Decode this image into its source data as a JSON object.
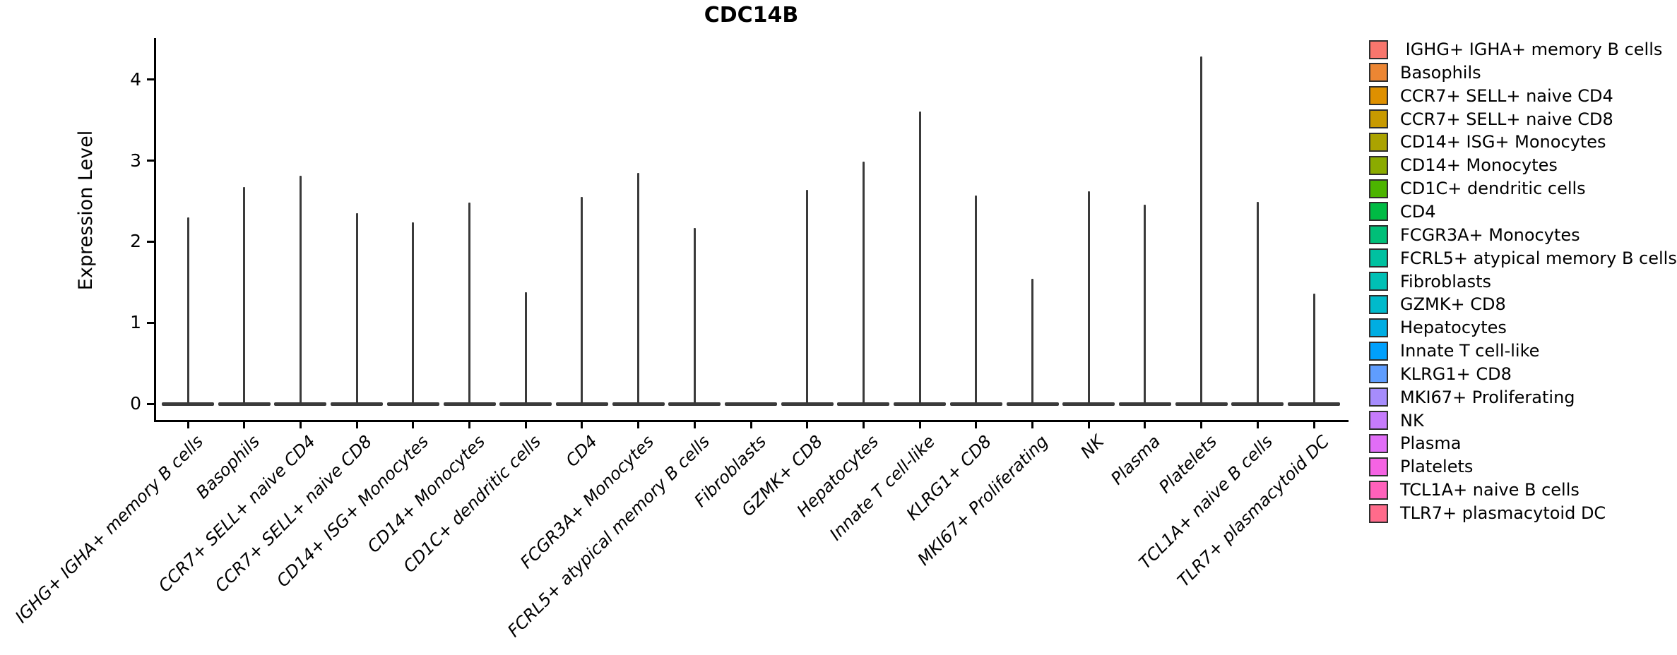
{
  "chart_data": {
    "type": "violin",
    "title": "CDC14B",
    "xlabel": "",
    "ylabel": "Expression Level",
    "y_ticks": [
      0,
      1,
      2,
      3,
      4
    ],
    "ylim": [
      -0.22,
      4.51
    ],
    "grid": false,
    "legend_position": "right",
    "violin_stroke_color": "#3a3a3a",
    "axis_color": "#000000",
    "categories": [
      {
        "label": "IGHG+ IGHA+ memory B cells",
        "legend_label": " IGHG+ IGHA+ memory B cells",
        "color": "#F8766D",
        "max_expression": 2.3
      },
      {
        "label": "Basophils",
        "legend_label": "Basophils",
        "color": "#EC8633",
        "max_expression": 2.67
      },
      {
        "label": "CCR7+ SELL+ naive CD4",
        "legend_label": "CCR7+ SELL+ naive CD4",
        "color": "#DE9000",
        "max_expression": 2.81
      },
      {
        "label": "CCR7+ SELL+ naive CD8",
        "legend_label": "CCR7+ SELL+ naive CD8",
        "color": "#C89A00",
        "max_expression": 2.35
      },
      {
        "label": "CD14+ ISG+ Monocytes",
        "legend_label": "CD14+ ISG+ Monocytes",
        "color": "#ABA300",
        "max_expression": 2.24
      },
      {
        "label": "CD14+ Monocytes",
        "legend_label": "CD14+ Monocytes",
        "color": "#8BAB00",
        "max_expression": 2.48
      },
      {
        "label": "CD1C+ dendritic cells",
        "legend_label": "CD1C+ dendritic cells",
        "color": "#4CB400",
        "max_expression": 1.38
      },
      {
        "label": "CD4",
        "legend_label": "CD4",
        "color": "#00BB44",
        "max_expression": 2.55
      },
      {
        "label": "FCGR3A+ Monocytes",
        "legend_label": "FCGR3A+ Monocytes",
        "color": "#00BF78",
        "max_expression": 2.85
      },
      {
        "label": "FCRL5+ atypical memory B cells",
        "legend_label": "FCRL5+ atypical memory B cells",
        "color": "#00C1A0",
        "max_expression": 2.17
      },
      {
        "label": "Fibroblasts",
        "legend_label": "Fibroblasts",
        "color": "#00C0B5",
        "max_expression": 0.0
      },
      {
        "label": "GZMK+ CD8",
        "legend_label": "GZMK+ CD8",
        "color": "#00BACB",
        "max_expression": 2.64
      },
      {
        "label": "Hepatocytes",
        "legend_label": "Hepatocytes",
        "color": "#00ADE2",
        "max_expression": 2.99
      },
      {
        "label": "Innate T cell-like",
        "legend_label": "Innate T cell-like",
        "color": "#00A0FC",
        "max_expression": 3.61
      },
      {
        "label": "KLRG1+ CD8",
        "legend_label": "KLRG1+ CD8",
        "color": "#5F9DFE",
        "max_expression": 2.57
      },
      {
        "label": "MKI67+ Proliferating",
        "legend_label": "MKI67+ Proliferating",
        "color": "#A68CFC",
        "max_expression": 1.54
      },
      {
        "label": "NK",
        "legend_label": "NK",
        "color": "#C67BFC",
        "max_expression": 2.62
      },
      {
        "label": "Plasma",
        "legend_label": "Plasma",
        "color": "#E16DF7",
        "max_expression": 2.46
      },
      {
        "label": "Platelets",
        "legend_label": "Platelets",
        "color": "#F563E3",
        "max_expression": 4.29
      },
      {
        "label": "TCL1A+ naive B cells",
        "legend_label": "TCL1A+ naive B cells",
        "color": "#FF61BB",
        "max_expression": 2.49
      },
      {
        "label": "TLR7+ plasmacytoid DC",
        "legend_label": "TLR7+ plasmacytoid DC",
        "color": "#FF6B8B",
        "max_expression": 1.36
      }
    ]
  }
}
